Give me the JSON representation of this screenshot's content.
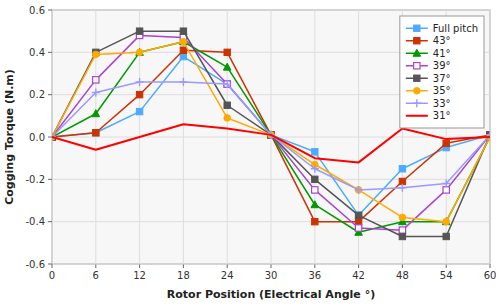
{
  "chart_data": {
    "type": "line",
    "xlabel": "Rotor Position (Electrical Angle °)",
    "ylabel": "Cogging Torque (N.m)",
    "x": [
      0,
      6,
      12,
      18,
      24,
      30,
      36,
      42,
      48,
      54,
      60
    ],
    "series": [
      {
        "name": "Full pitch",
        "color": "#4DAAFF",
        "marker": "square",
        "values": [
          0.0,
          0.02,
          0.12,
          0.38,
          0.25,
          0.01,
          -0.07,
          -0.37,
          -0.15,
          -0.05,
          0.01
        ]
      },
      {
        "name": "43°",
        "color": "#CC3300",
        "marker": "square",
        "values": [
          0.0,
          0.02,
          0.2,
          0.41,
          0.4,
          0.01,
          -0.4,
          -0.4,
          -0.21,
          -0.03,
          0.01
        ]
      },
      {
        "name": "41°",
        "color": "#009900",
        "marker": "triangle",
        "values": [
          0.0,
          0.11,
          0.4,
          0.45,
          0.33,
          0.01,
          -0.32,
          -0.45,
          -0.4,
          -0.4,
          0.0
        ]
      },
      {
        "name": "39°",
        "color": "#AA44CC",
        "marker": "open-square",
        "values": [
          0.0,
          0.27,
          0.48,
          0.47,
          0.25,
          0.01,
          -0.25,
          -0.43,
          -0.44,
          -0.25,
          0.01
        ]
      },
      {
        "name": "37°",
        "color": "#555555",
        "marker": "square",
        "values": [
          0.0,
          0.4,
          0.5,
          0.5,
          0.15,
          0.01,
          -0.2,
          -0.37,
          -0.47,
          -0.47,
          0.01
        ]
      },
      {
        "name": "35°",
        "color": "#FFAA00",
        "marker": "circle",
        "values": [
          0.0,
          0.39,
          0.4,
          0.45,
          0.09,
          0.01,
          -0.13,
          -0.25,
          -0.38,
          -0.4,
          0.0
        ]
      },
      {
        "name": "33°",
        "color": "#9999FF",
        "marker": "plus",
        "values": [
          0.0,
          0.21,
          0.26,
          0.26,
          0.25,
          0.01,
          -0.15,
          -0.25,
          -0.24,
          -0.22,
          0.01
        ]
      },
      {
        "name": "31°",
        "color": "#FF0000",
        "marker": "none",
        "values": [
          0.0,
          -0.06,
          0.0,
          0.06,
          0.04,
          0.01,
          -0.1,
          -0.12,
          0.04,
          -0.01,
          0.0
        ]
      }
    ],
    "xlim": [
      0,
      60
    ],
    "ylim": [
      -0.6,
      0.6
    ],
    "xticks": [
      0,
      6,
      12,
      18,
      24,
      30,
      36,
      42,
      48,
      54,
      60
    ],
    "yticks": [
      -0.6,
      -0.4,
      -0.2,
      {
        "value": 0.0,
        "label": "0.0"
      },
      0.2,
      0.4,
      0.6
    ],
    "grid": true,
    "legend": "upper-right"
  }
}
